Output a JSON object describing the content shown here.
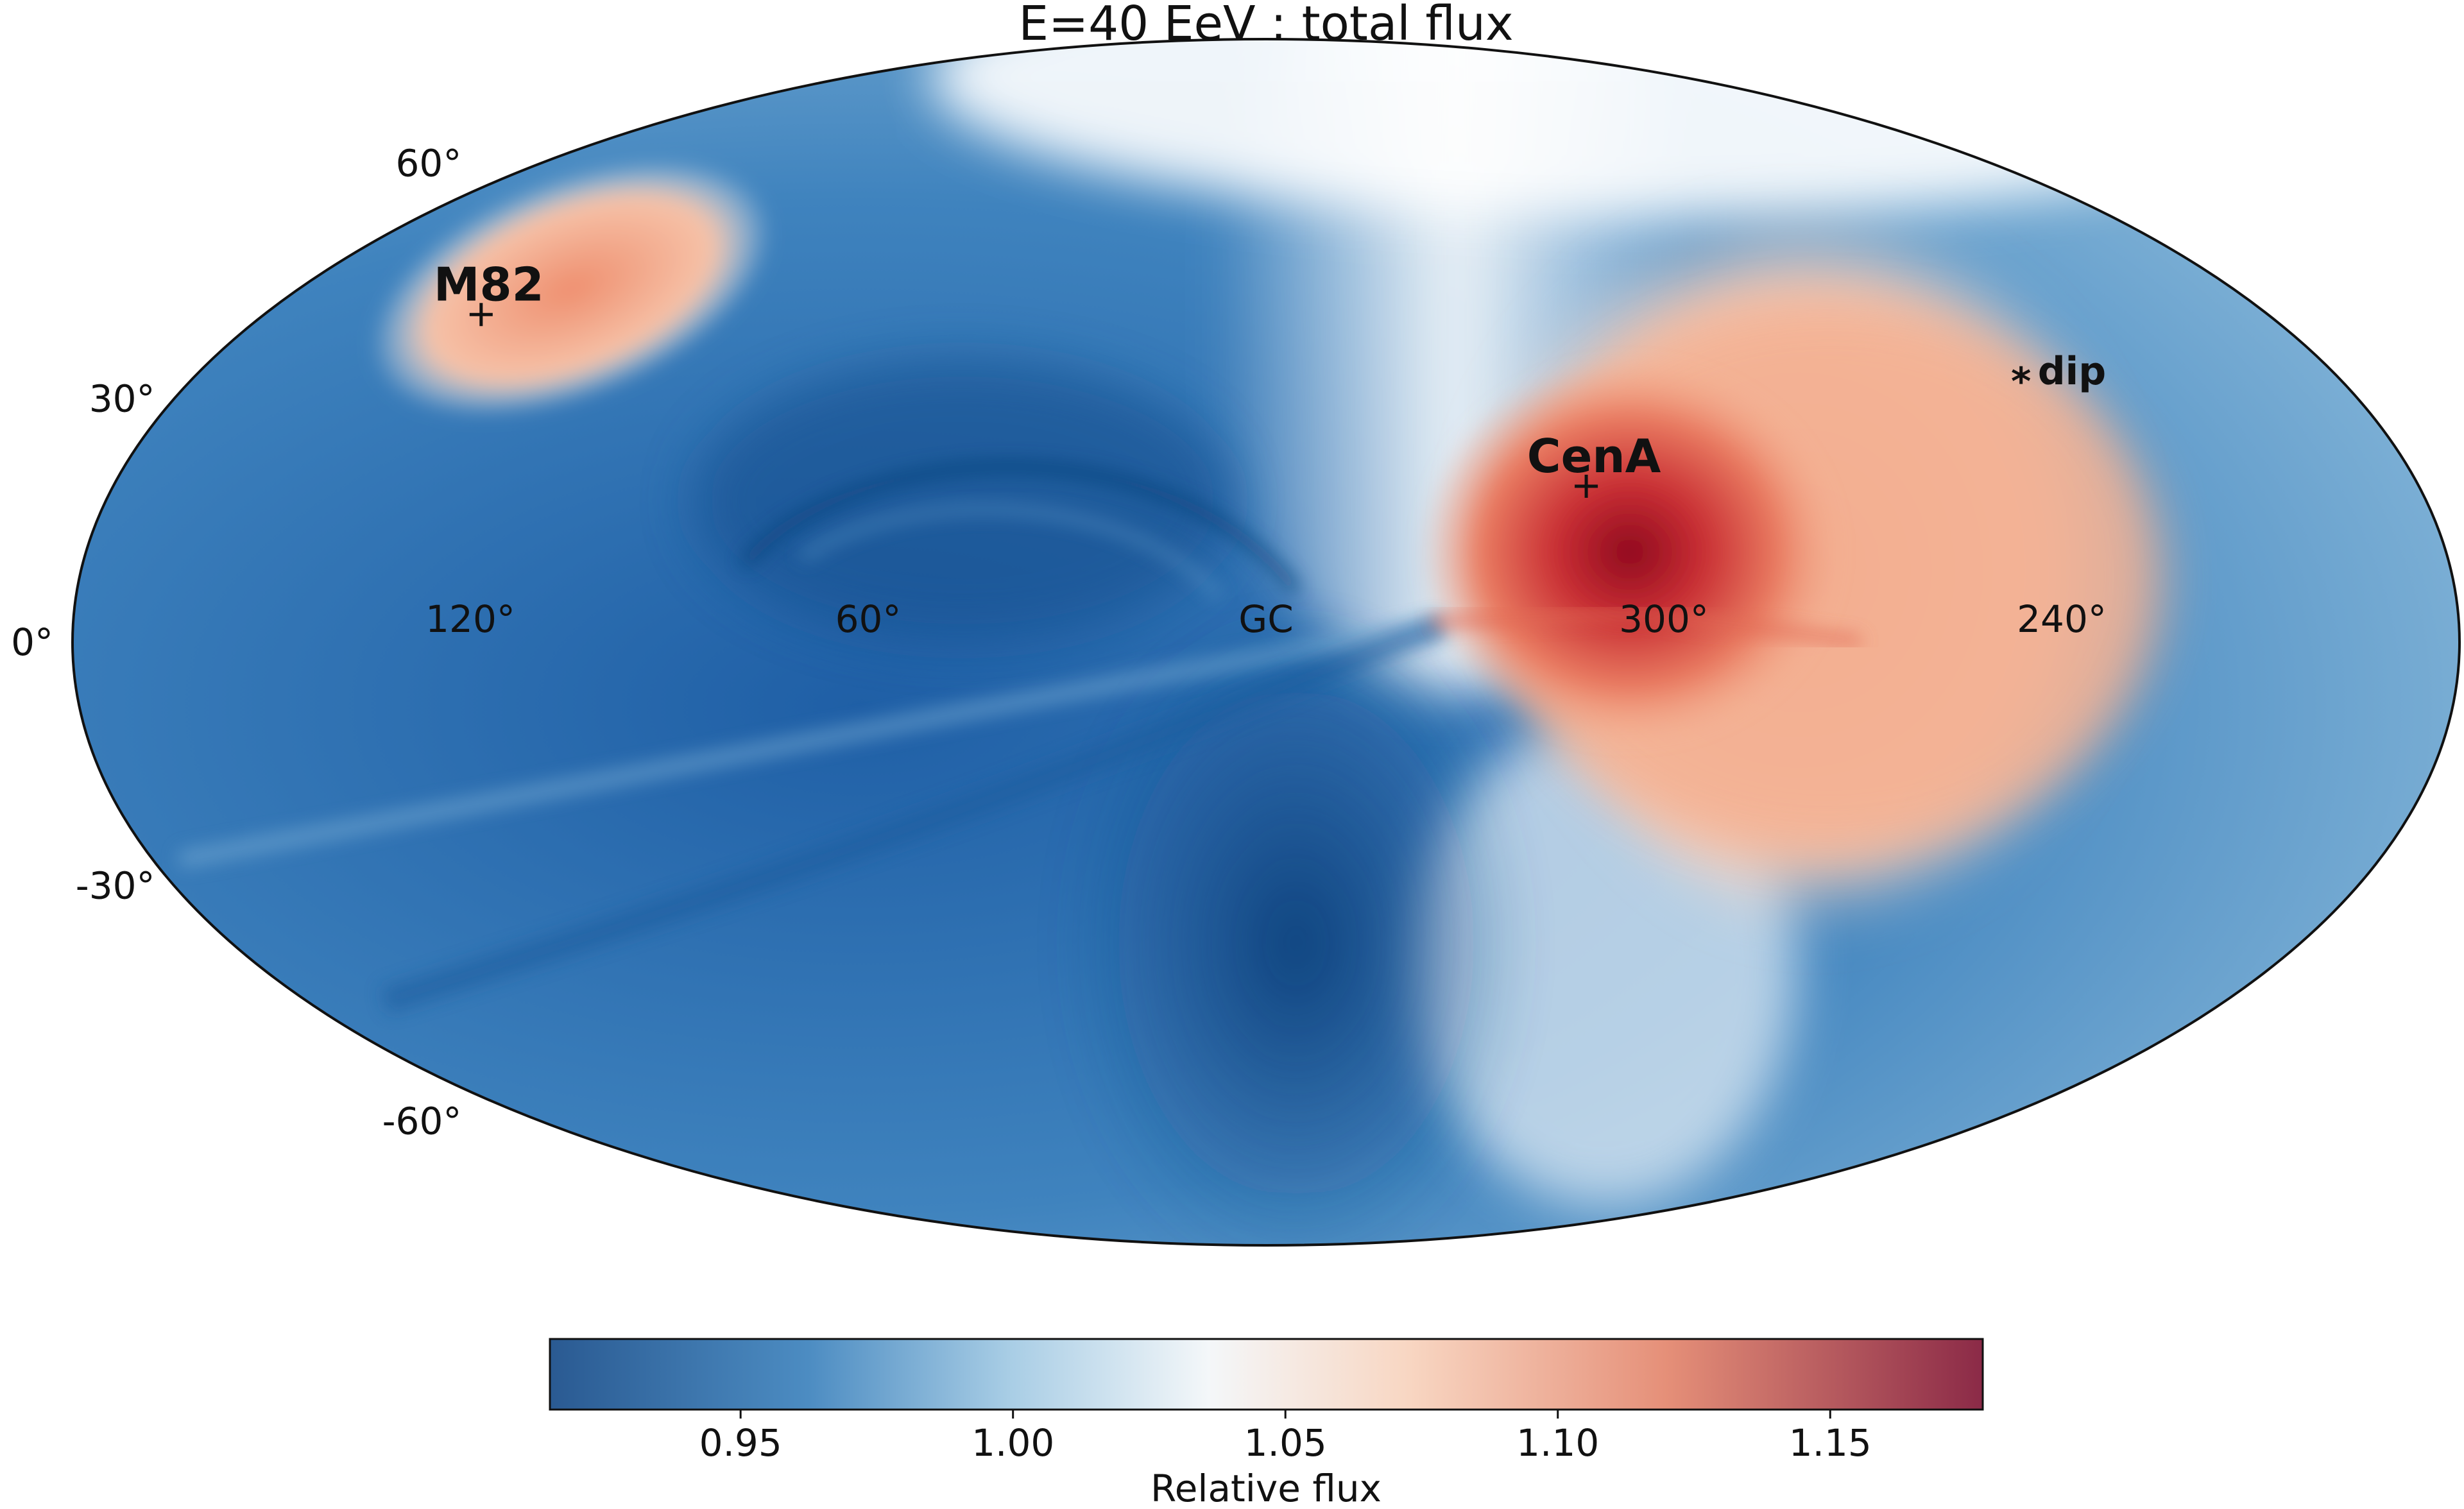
{
  "chart_data": {
    "type": "heatmap",
    "projection": "Mollweide sky map, galactic coordinates",
    "title": "E=40 EeV ; total flux",
    "longitude_ticks": [
      {
        "value": 120,
        "label": "120°"
      },
      {
        "value": 60,
        "label": "60°"
      },
      {
        "value": 0,
        "label": "GC"
      },
      {
        "value": -60,
        "label": "300°"
      },
      {
        "value": -120,
        "label": "240°"
      }
    ],
    "latitude_ticks": [
      {
        "value": 60,
        "label": "60°"
      },
      {
        "value": 30,
        "label": "30°"
      },
      {
        "value": 0,
        "label": "0°"
      },
      {
        "value": -30,
        "label": "-30°"
      },
      {
        "value": -60,
        "label": "-60°"
      }
    ],
    "sources": [
      {
        "name": "M82",
        "lon": 141,
        "lat": 41,
        "marker": "+"
      },
      {
        "name": "CenA",
        "lon": -50,
        "lat": 19,
        "marker": "+"
      },
      {
        "name": "dip",
        "lon": -127,
        "lat": 33,
        "marker": "*"
      }
    ],
    "colorbar": {
      "label": "Relative flux",
      "range": [
        0.915,
        1.178
      ],
      "colormap": "RdBu_r",
      "ticks": [
        {
          "value": 0.95,
          "label": "0.95"
        },
        {
          "value": 1.0,
          "label": "1.00"
        },
        {
          "value": 1.05,
          "label": "1.05"
        },
        {
          "value": 1.1,
          "label": "1.10"
        },
        {
          "value": 1.15,
          "label": "1.15"
        }
      ]
    },
    "features": [
      {
        "name": "hotspot near CenA",
        "lon": -55,
        "lat": 10,
        "value": 1.17
      },
      {
        "name": "warm region around M82",
        "lon": 141,
        "lat": 41,
        "value": 1.08
      },
      {
        "name": "cold band southern sky",
        "lon": 0,
        "lat": -40,
        "value": 0.93
      }
    ]
  }
}
